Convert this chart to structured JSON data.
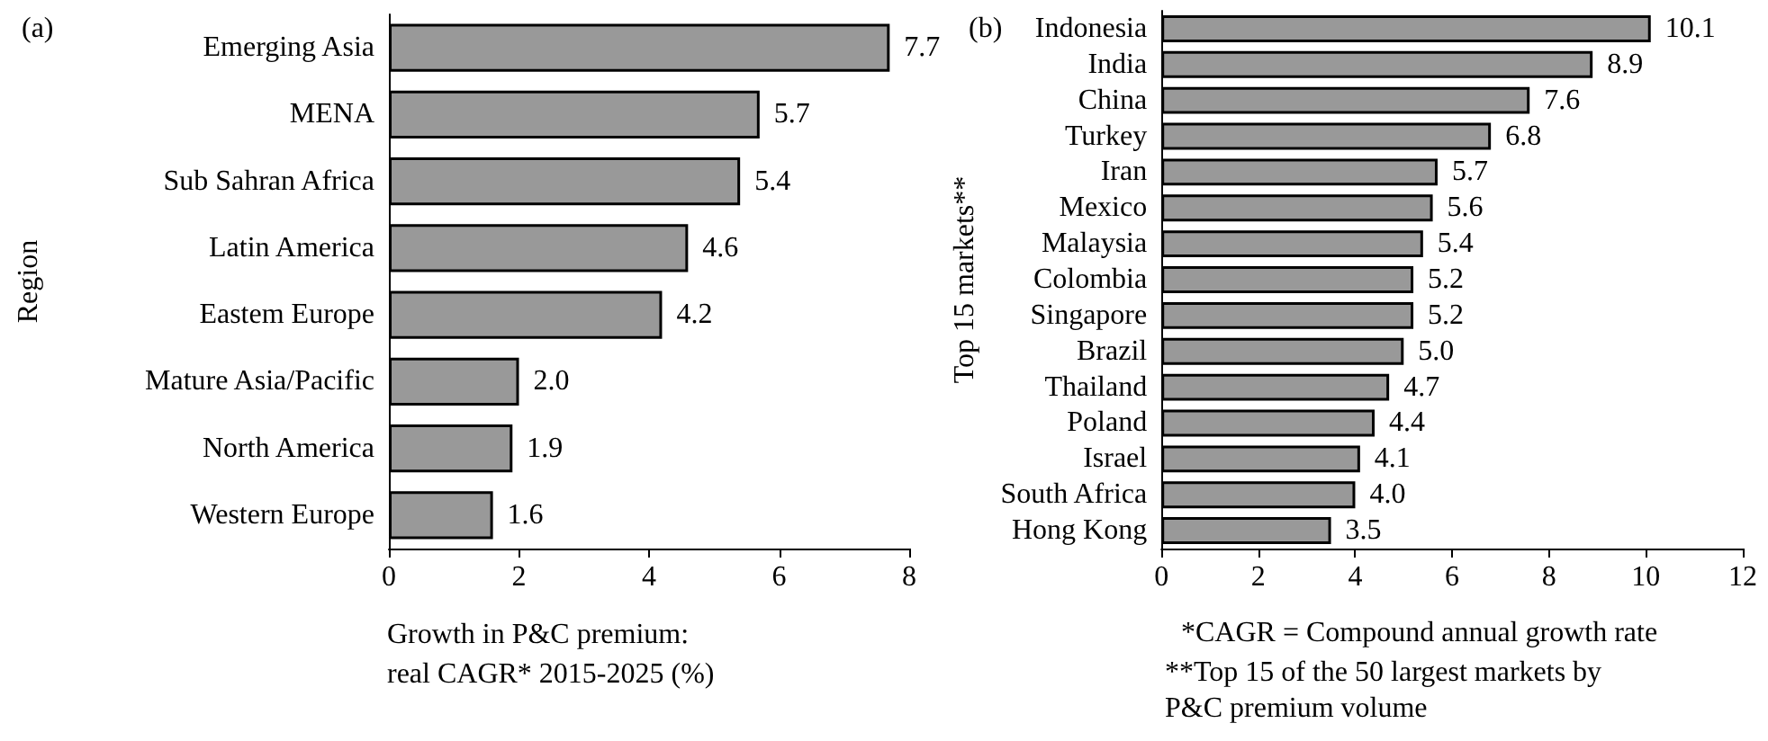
{
  "chart_data": [
    {
      "type": "bar",
      "orientation": "horizontal",
      "title": "(a)",
      "xlabel": "Growth in P&C premium:\nreal CAGR* 2015-2025 (%)",
      "ylabel": "Region",
      "categories": [
        "Emerging Asia",
        "MENA",
        "Sub Sahran Africa",
        "Latin America",
        "Eastem Europe",
        "Mature Asia/Pacific",
        "North America",
        "Western Europe"
      ],
      "values": [
        7.7,
        5.7,
        5.4,
        4.6,
        4.2,
        2.0,
        1.9,
        1.6
      ],
      "value_labels": [
        "7.7",
        "5.7",
        "5.4",
        "4.6",
        "4.2",
        "2.0",
        "1.9",
        "1.6"
      ],
      "color": "#999999",
      "xlim": [
        0,
        8
      ],
      "xticks": [
        0,
        2,
        4,
        6,
        8
      ],
      "grid": false
    },
    {
      "type": "bar",
      "orientation": "horizontal",
      "title": "(b)",
      "ylabel": "Top 15 markets**",
      "categories": [
        "Indonesia",
        "India",
        "China",
        "Turkey",
        "Iran",
        "Mexico",
        "Malaysia",
        "Colombia",
        "Singapore",
        "Brazil",
        "Thailand",
        "Poland",
        "Israel",
        "South Africa",
        "Hong Kong"
      ],
      "values": [
        10.1,
        8.9,
        7.6,
        6.8,
        5.7,
        5.6,
        5.4,
        5.2,
        5.2,
        5.0,
        4.7,
        4.4,
        4.1,
        4.0,
        3.5
      ],
      "value_labels": [
        "10.1",
        "8.9",
        "7.6",
        "6.8",
        "5.7",
        "5.6",
        "5.4",
        "5.2",
        "5.2",
        "5.0",
        "4.7",
        "4.4",
        "4.1",
        "4.0",
        "3.5"
      ],
      "color": "#999999",
      "xlim": [
        0,
        12
      ],
      "xticks": [
        0,
        2,
        4,
        6,
        8,
        10,
        12
      ],
      "grid": false,
      "annotations": [
        "*CAGR = Compound annual growth rate",
        "**Top 15 of the 50 largest markets by P&C premium volume"
      ]
    }
  ]
}
